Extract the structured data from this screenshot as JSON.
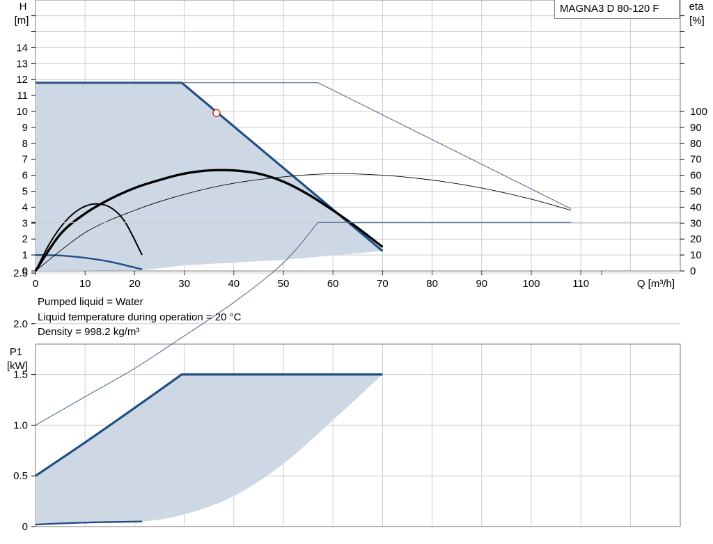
{
  "model": "MAGNA3 D 80-120 F",
  "info": {
    "liquid": "Pumped liquid = Water",
    "temperature": "Liquid temperature during operation = 20 °C",
    "density": "Density = 998.2 kg/m³"
  },
  "colors": {
    "max_curve": "#1f4e86",
    "thin_curve": "#4a5f8a",
    "area_fill": "#cdd8e4",
    "efficiency": "#000000",
    "grid": "#cccccc",
    "duty_point": "#cc0000"
  },
  "chart_data": [
    {
      "type": "line",
      "name": "QH",
      "xlabel": "Q [m³/h]",
      "ylabel_left": [
        "H",
        "[m]"
      ],
      "ylabel_right": [
        "eta",
        "[%]"
      ],
      "xlim": [
        0,
        130
      ],
      "ylim_left": [
        0,
        17
      ],
      "ylim_right": [
        0,
        100
      ],
      "x_ticks": [
        0,
        10,
        20,
        30,
        40,
        50,
        60,
        70,
        80,
        90,
        100,
        110
      ],
      "y_ticks_left": [
        0,
        1,
        2,
        3,
        4,
        5,
        6,
        7,
        8,
        9,
        10,
        11,
        12,
        13,
        14
      ],
      "y_ticks_right": [
        0,
        10,
        20,
        30,
        40,
        50,
        60,
        70,
        80,
        90,
        100
      ],
      "grid": true,
      "operating_area": {
        "upper": [
          [
            0,
            11.8
          ],
          [
            29.5,
            11.8
          ],
          [
            70,
            1.25
          ]
        ],
        "lower": [
          [
            70,
            1.25
          ],
          [
            50,
            0.7
          ],
          [
            30,
            0.35
          ],
          [
            21.5,
            0.05
          ],
          [
            10,
            0.01
          ],
          [
            0,
            0
          ]
        ]
      },
      "series": [
        {
          "role": "max_single",
          "axis": "left",
          "points": [
            [
              0,
              11.8
            ],
            [
              29.5,
              11.8
            ],
            [
              70,
              1.25
            ]
          ]
        },
        {
          "role": "max_parallel",
          "axis": "left",
          "points": [
            [
              0,
              11.8
            ],
            [
              57,
              11.8
            ],
            [
              108,
              3.9
            ]
          ]
        },
        {
          "role": "min",
          "axis": "left",
          "points": [
            [
              0,
              1.0
            ],
            [
              5,
              0.97
            ],
            [
              10,
              0.82
            ],
            [
              15,
              0.58
            ],
            [
              21.5,
              0.1
            ]
          ]
        },
        {
          "role": "eta_max_single",
          "axis": "right",
          "points": [
            [
              0,
              0
            ],
            [
              5,
              23
            ],
            [
              10,
              36
            ],
            [
              15,
              45
            ],
            [
              20,
              52
            ],
            [
              25,
              57
            ],
            [
              30,
              61
            ],
            [
              35,
              63
            ],
            [
              40,
              63
            ],
            [
              45,
              61
            ],
            [
              50,
              56
            ],
            [
              55,
              48
            ],
            [
              60,
              38
            ],
            [
              65,
              27
            ],
            [
              70,
              15
            ]
          ]
        },
        {
          "role": "eta_max_parallel",
          "axis": "right",
          "points": [
            [
              0,
              0
            ],
            [
              10,
              24
            ],
            [
              20,
              38
            ],
            [
              30,
              48
            ],
            [
              40,
              55
            ],
            [
              50,
              59
            ],
            [
              60,
              61
            ],
            [
              70,
              60
            ],
            [
              80,
              57
            ],
            [
              90,
              52
            ],
            [
              100,
              45
            ],
            [
              108,
              38
            ]
          ]
        },
        {
          "role": "eta_min",
          "axis": "right",
          "points": [
            [
              0,
              0
            ],
            [
              3,
              18
            ],
            [
              6,
              31
            ],
            [
              9,
              39
            ],
            [
              12,
              42
            ],
            [
              15,
              40
            ],
            [
              18,
              31
            ],
            [
              21.5,
              10
            ]
          ]
        }
      ],
      "duty_point": {
        "q": 36.5,
        "h": 9.9
      }
    },
    {
      "type": "line",
      "name": "P1",
      "ylabel": [
        "P1",
        "[kW]"
      ],
      "xlim": [
        0,
        130
      ],
      "ylim": [
        0,
        3.0
      ],
      "y_ticks": [
        "0",
        "0.5",
        "1.0",
        "1.5",
        "2.0",
        "2.5"
      ],
      "grid": true,
      "operating_area": {
        "upper": [
          [
            0,
            0.5
          ],
          [
            10,
            0.83
          ],
          [
            20,
            1.17
          ],
          [
            29.5,
            1.5
          ],
          [
            70,
            1.5
          ]
        ],
        "lower": [
          [
            70,
            1.5
          ],
          [
            60,
            1.05
          ],
          [
            50,
            0.62
          ],
          [
            40,
            0.3
          ],
          [
            30,
            0.12
          ],
          [
            21.5,
            0.05
          ],
          [
            10,
            0.03
          ],
          [
            0,
            0.02
          ]
        ]
      },
      "series": [
        {
          "role": "max_single",
          "points": [
            [
              0,
              0.5
            ],
            [
              10,
              0.83
            ],
            [
              20,
              1.17
            ],
            [
              29.5,
              1.5
            ],
            [
              70,
              1.5
            ]
          ]
        },
        {
          "role": "max_parallel",
          "points": [
            [
              0,
              1.0
            ],
            [
              10,
              1.28
            ],
            [
              20,
              1.56
            ],
            [
              30,
              1.88
            ],
            [
              40,
              2.21
            ],
            [
              50,
              2.6
            ],
            [
              57,
              3.0
            ],
            [
              108,
              3.0
            ]
          ]
        },
        {
          "role": "min",
          "points": [
            [
              0,
              0.02
            ],
            [
              10,
              0.04
            ],
            [
              21.5,
              0.05
            ]
          ]
        }
      ]
    }
  ]
}
